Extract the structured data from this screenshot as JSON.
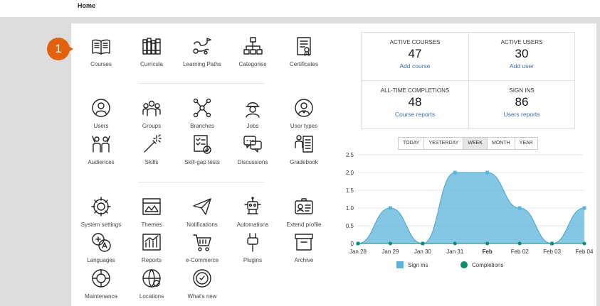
{
  "breadcrumb": {
    "home": "Home"
  },
  "badge": {
    "number": "1"
  },
  "tiles": [
    {
      "label": "Courses",
      "icon": "book-icon"
    },
    {
      "label": "Curricula",
      "icon": "books-shelf-icon"
    },
    {
      "label": "Learning Paths",
      "icon": "learning-path-icon"
    },
    {
      "label": "Categories",
      "icon": "categories-icon"
    },
    {
      "label": "Certificates",
      "icon": "certificate-icon"
    },
    {
      "label": "Users",
      "icon": "user-icon"
    },
    {
      "label": "Groups",
      "icon": "groups-icon"
    },
    {
      "label": "Branches",
      "icon": "branches-icon"
    },
    {
      "label": "Jobs",
      "icon": "worker-icon"
    },
    {
      "label": "User types",
      "icon": "user-types-icon"
    },
    {
      "label": "Audiences",
      "icon": "audiences-icon"
    },
    {
      "label": "Skills",
      "icon": "magic-wand-icon"
    },
    {
      "label": "Skill-gap tests",
      "icon": "checklist-icon"
    },
    {
      "label": "Discussions",
      "icon": "discussions-icon"
    },
    {
      "label": "Gradebook",
      "icon": "gradebook-icon"
    },
    {
      "label": "System settings",
      "icon": "gear-icon"
    },
    {
      "label": "Themes",
      "icon": "themes-icon"
    },
    {
      "label": "Notifications",
      "icon": "paper-plane-icon"
    },
    {
      "label": "Automations",
      "icon": "robot-icon"
    },
    {
      "label": "Extend profile",
      "icon": "id-card-icon"
    },
    {
      "label": "Languages",
      "icon": "languages-icon"
    },
    {
      "label": "Reports",
      "icon": "reports-icon"
    },
    {
      "label": "e-Commerce",
      "icon": "cart-icon"
    },
    {
      "label": "Plugins",
      "icon": "plug-icon"
    },
    {
      "label": "Archive",
      "icon": "archive-box-icon"
    },
    {
      "label": "Maintenance",
      "icon": "maintenance-icon"
    },
    {
      "label": "Locations",
      "icon": "globe-icon"
    },
    {
      "label": "What's new",
      "icon": "whats-new-icon"
    }
  ],
  "stats": {
    "active_courses": {
      "title": "ACTIVE COURSES",
      "value": "47",
      "link": "Add course"
    },
    "active_users": {
      "title": "ACTIVE USERS",
      "value": "30",
      "link": "Add user"
    },
    "completions": {
      "title": "ALL-TIME COMPLETIONS",
      "value": "48",
      "link": "Course reports"
    },
    "sign_ins": {
      "title": "SIGN INS",
      "value": "86",
      "link": "Users reports"
    }
  },
  "range_tabs": [
    "TODAY",
    "YESTERDAY",
    "WEEK",
    "MONTH",
    "YEAR"
  ],
  "active_tab": "WEEK",
  "colors": {
    "accent_link": "#3b6ea8",
    "badge": "#e0620d",
    "sign_ins": "#5ab4dc",
    "completions": "#0c8c73"
  },
  "chart_data": {
    "type": "area",
    "categories": [
      "Jan 28",
      "Jan 29",
      "Jan 30",
      "Jan 31",
      "Feb",
      "Feb 02",
      "Feb 03",
      "Feb 04"
    ],
    "series": [
      {
        "name": "Sign ins",
        "values": [
          0,
          1,
          0,
          2,
          2,
          1,
          0,
          1
        ]
      },
      {
        "name": "Completions",
        "values": [
          0,
          0,
          0,
          0,
          0,
          0,
          0,
          0
        ]
      }
    ],
    "yticks": [
      "0",
      "0.5",
      "1.0",
      "1.5",
      "2.0",
      "2.5"
    ],
    "ylim": [
      0,
      2.5
    ],
    "legend": "bottom",
    "grid": true
  }
}
